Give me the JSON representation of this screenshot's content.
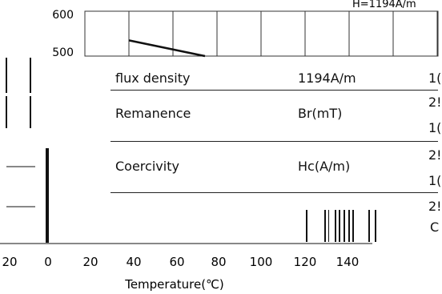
{
  "chart_data": {
    "type": "line",
    "xlabel": "Temperature(℃)",
    "x_ticks": [
      "20",
      "0",
      "20",
      "40",
      "60",
      "80",
      "100",
      "120",
      "140"
    ],
    "inset": {
      "y_ticks": [
        "600",
        "500"
      ],
      "corner_label": "H=1194A/m",
      "series": [
        {
          "x": [
            0,
            0.95
          ],
          "y": [
            535,
            500
          ]
        }
      ]
    }
  },
  "table": {
    "rows": [
      {
        "param": "flux density",
        "value": "1194A/m",
        "edge": "1("
      },
      {
        "param": "Remanence",
        "value": "Br(mT)",
        "edge": "2!"
      },
      {
        "param": "",
        "value": "",
        "edge": "1("
      },
      {
        "param": "Coercivity",
        "value": "Hc(A/m)",
        "edge": "2!"
      },
      {
        "param": "",
        "value": "",
        "edge": "1("
      },
      {
        "param": "",
        "value": "",
        "edge": "2!"
      }
    ],
    "bottom_edge": "C"
  },
  "colors": {
    "line": "#111111",
    "grid": "#333333",
    "text": "#1a1a1a"
  }
}
